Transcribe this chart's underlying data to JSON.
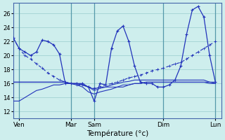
{
  "xlabel": "Température (°c)",
  "bg_color": "#ceeeed",
  "line_color": "#2233bb",
  "grid_color": "#99cccc",
  "sep_color": "#5599aa",
  "ylim": [
    11.0,
    27.5
  ],
  "yticks": [
    12,
    14,
    16,
    18,
    20,
    22,
    24,
    26
  ],
  "xlim": [
    0,
    36
  ],
  "xtick_positions": [
    1,
    10,
    14,
    26,
    35
  ],
  "xtick_labels": [
    "Ven",
    "Mar",
    "Sam",
    "Dim",
    "Lun"
  ],
  "sep_positions": [
    1,
    10,
    14,
    26,
    35
  ],
  "n_points": 36,
  "line_main": [
    22.5,
    21.0,
    20.5,
    20.0,
    20.5,
    22.2,
    22.0,
    21.5,
    20.2,
    16.0,
    16.0,
    16.0,
    16.0,
    15.5,
    13.5,
    16.0,
    15.8,
    21.0,
    23.5,
    24.2,
    22.0,
    18.5,
    16.2,
    16.0,
    16.0,
    15.5,
    15.5,
    15.8,
    16.5,
    18.5,
    23.0,
    26.5,
    27.0,
    25.5,
    20.0,
    16.2
  ],
  "line_diag": [
    22.5,
    21.0,
    20.0,
    19.5,
    18.8,
    18.2,
    17.5,
    17.0,
    16.5,
    16.2,
    16.0,
    15.8,
    15.8,
    15.5,
    15.3,
    15.5,
    15.8,
    16.0,
    16.2,
    16.5,
    16.8,
    17.0,
    17.2,
    17.5,
    17.8,
    18.0,
    18.2,
    18.5,
    18.8,
    19.0,
    19.5,
    20.0,
    20.5,
    21.0,
    21.5,
    22.0
  ],
  "line_flat1": [
    16.2,
    16.2,
    16.2,
    16.2,
    16.2,
    16.2,
    16.2,
    16.2,
    16.2,
    16.2,
    16.0,
    16.0,
    15.8,
    15.5,
    15.2,
    15.5,
    15.5,
    15.8,
    16.0,
    16.2,
    16.3,
    16.5,
    16.5,
    16.5,
    16.5,
    16.5,
    16.5,
    16.5,
    16.5,
    16.5,
    16.5,
    16.5,
    16.5,
    16.5,
    16.2,
    16.2
  ],
  "line_flat2": [
    16.2,
    16.2,
    16.2,
    16.2,
    16.2,
    16.2,
    16.2,
    16.2,
    16.2,
    16.2,
    16.0,
    16.0,
    15.8,
    15.5,
    15.0,
    15.3,
    15.5,
    15.5,
    15.5,
    15.8,
    15.8,
    16.0,
    16.0,
    16.2,
    16.2,
    16.2,
    16.2,
    16.2,
    16.2,
    16.2,
    16.2,
    16.2,
    16.2,
    16.2,
    16.0,
    16.0
  ],
  "line_low": [
    13.5,
    13.5,
    14.0,
    14.5,
    15.0,
    15.2,
    15.5,
    15.8,
    15.8,
    16.0,
    16.0,
    15.8,
    15.5,
    14.8,
    14.5,
    14.8,
    15.0,
    15.2,
    15.5,
    15.5,
    15.8,
    16.0,
    16.0,
    16.2,
    16.2,
    16.2,
    16.2,
    16.2,
    16.2,
    16.2,
    16.2,
    16.2,
    16.2,
    16.2,
    16.2,
    16.0
  ]
}
